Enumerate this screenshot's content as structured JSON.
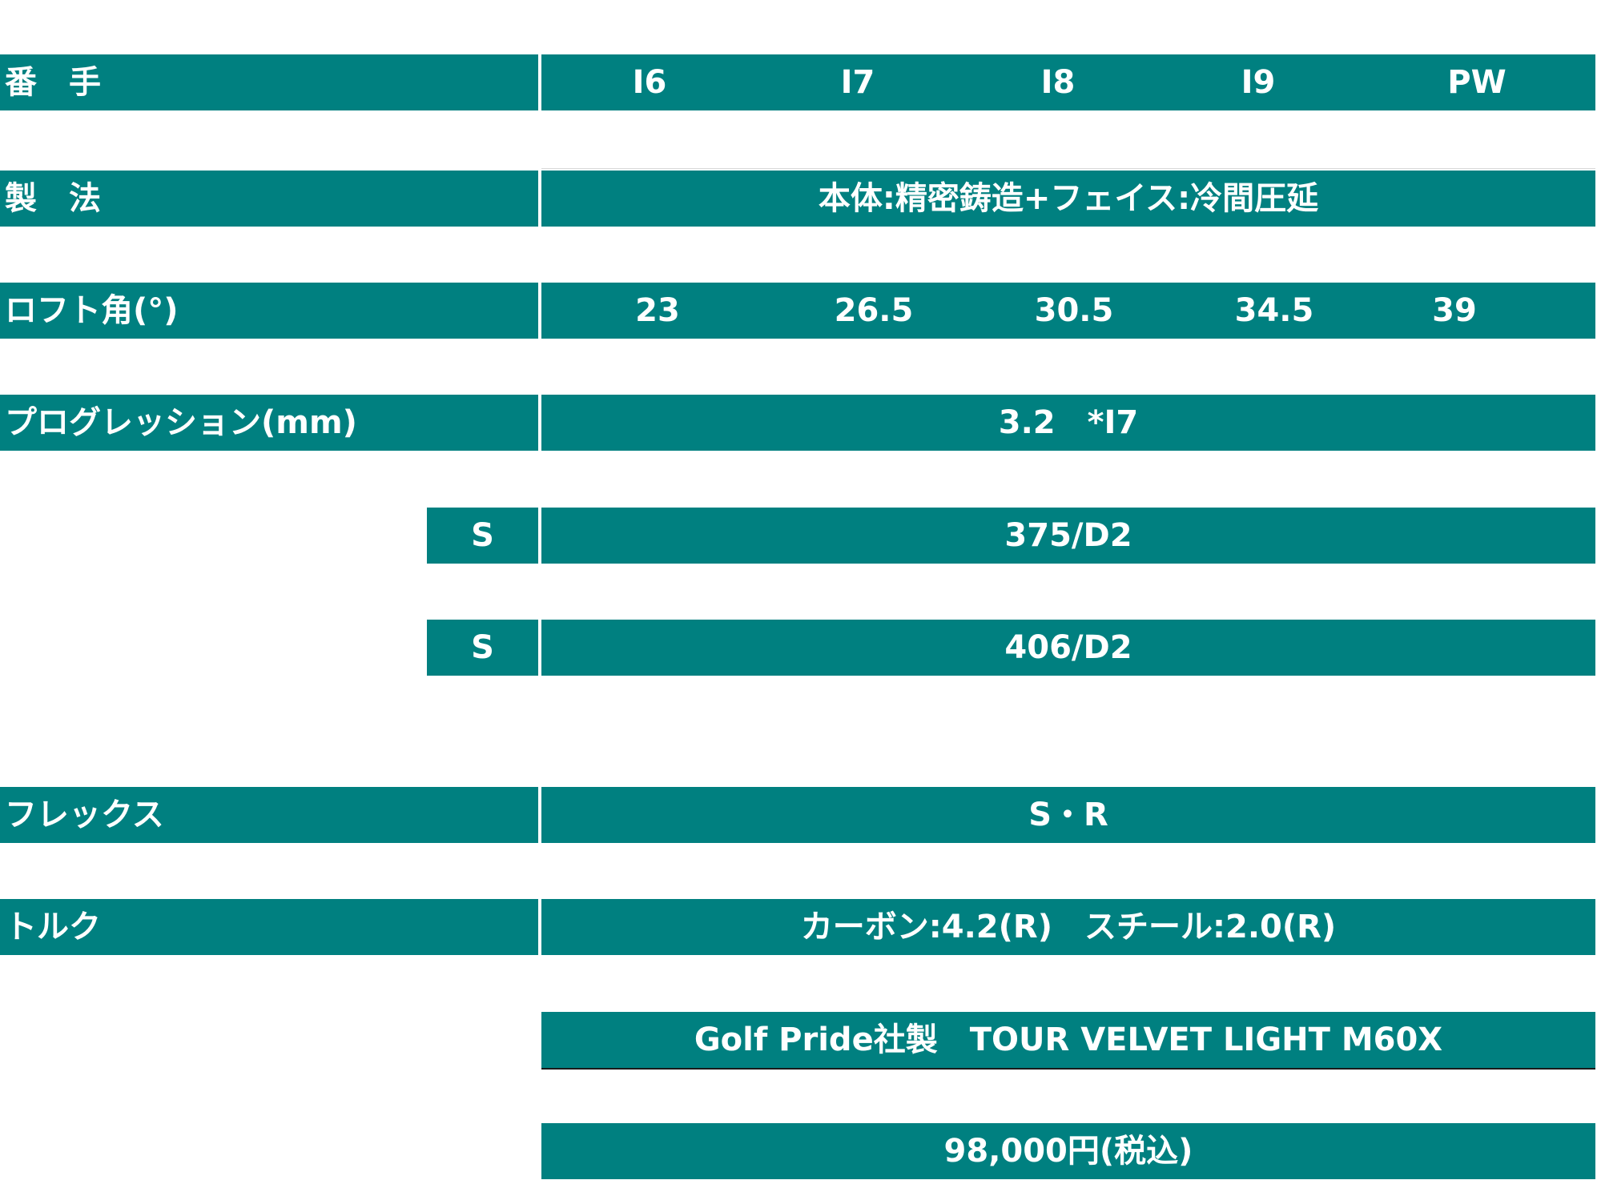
{
  "rows": {
    "number": {
      "label": "番　手",
      "values": [
        "I6",
        "I7",
        "I8",
        "I9",
        "PW"
      ]
    },
    "construction": {
      "label": "製　法",
      "value": "本体:精密鋳造+フェイス:冷間圧延"
    },
    "loft": {
      "label": "ロフト角(°)",
      "values": [
        "23",
        "26.5",
        "30.5",
        "34.5",
        "39"
      ]
    },
    "progression": {
      "label": "プログレッション(mm)",
      "value": "3.2　*I7"
    },
    "shaft_a": {
      "sub": "S",
      "value": "375/D2"
    },
    "shaft_b": {
      "sub": "S",
      "value": "406/D2"
    },
    "flex": {
      "label": "フレックス",
      "value": "S・R"
    },
    "torque": {
      "label": "トルク",
      "value": "カーボン:4.2(R)　スチール:2.0(R)"
    },
    "grip": {
      "value": "Golf Pride社製　TOUR VELVET LIGHT M60X"
    },
    "price": {
      "value": "98,000円(税込)"
    }
  },
  "colors": {
    "bar": "#008080",
    "text": "#ffffff"
  }
}
